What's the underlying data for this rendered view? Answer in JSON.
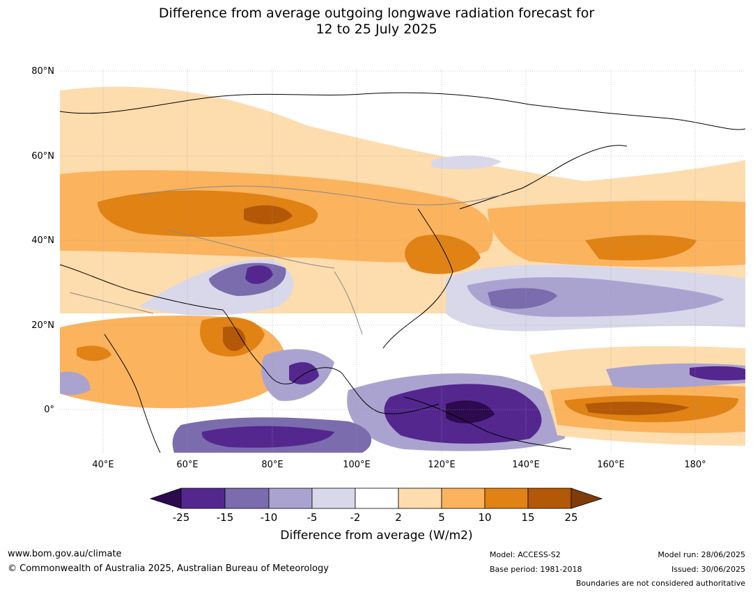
{
  "title_line1": "Difference from average outgoing longwave radiation forecast for",
  "title_line2": "12 to 25 July 2025",
  "lat_labels": [
    "80°N",
    "60°N",
    "40°N",
    "20°N",
    "0°"
  ],
  "lon_labels": [
    "40°E",
    "60°E",
    "80°E",
    "100°E",
    "120°E",
    "140°E",
    "160°E",
    "180°"
  ],
  "colorbar": {
    "ticks": [
      "-25",
      "-15",
      "-10",
      "-5",
      "-2",
      "2",
      "5",
      "10",
      "15",
      "25"
    ],
    "title": "Difference from average (W/m2)",
    "colors": {
      "below_min": "#2d0a4e",
      "n25_n15": "#54278f",
      "n15_n10": "#7b6cae",
      "n10_n5": "#aba3cf",
      "n5_n2": "#d8d8ea",
      "n2_p2": "#ffffff",
      "p2_p5": "#fddcae",
      "p5_p10": "#fbb35e",
      "p10_p15": "#e08214",
      "p15_p25": "#b35806",
      "above_max": "#7f3b08"
    }
  },
  "footer": {
    "url": "www.bom.gov.au/climate",
    "copyright": "© Commonwealth of Australia 2025, Australian Bureau of Meteorology",
    "model": "Model: ACCESS-S2",
    "base_period": "Base period: 1981-2018",
    "model_run": "Model run: 28/06/2025",
    "issued": "Issued: 30/06/2025",
    "boundaries": "Boundaries are not considered authoritative"
  }
}
